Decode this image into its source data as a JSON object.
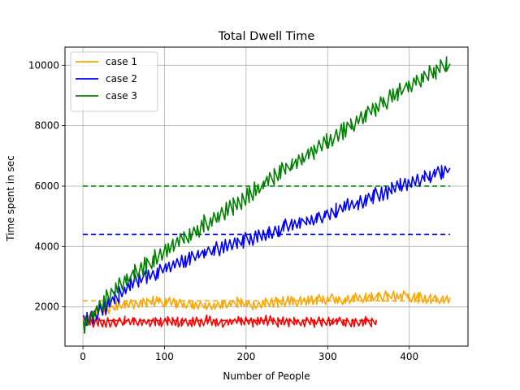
{
  "chart_data": {
    "type": "line",
    "title": "Total Dwell Time",
    "xlabel": "Number of People",
    "ylabel": "Time spent in sec",
    "xlim": [
      -22,
      472
    ],
    "ylim": [
      700,
      10600
    ],
    "xticks": [
      0,
      100,
      200,
      300,
      400
    ],
    "yticks": [
      2000,
      4000,
      6000,
      8000,
      10000
    ],
    "grid": true,
    "legend_position": "top-left",
    "series": [
      {
        "name": "case 1",
        "color": "#FFA500",
        "style": "solid",
        "x": [
          0,
          10,
          20,
          30,
          40,
          50,
          60,
          70,
          80,
          90,
          100,
          110,
          120,
          130,
          140,
          150,
          160,
          170,
          180,
          190,
          200,
          210,
          220,
          230,
          240,
          250,
          260,
          270,
          280,
          290,
          300,
          310,
          320,
          330,
          340,
          350,
          360,
          370,
          380,
          390,
          400,
          410,
          420,
          430,
          440,
          450
        ],
        "y": [
          1500,
          1700,
          1850,
          1900,
          2000,
          2050,
          2100,
          2150,
          2150,
          2200,
          2150,
          2150,
          2100,
          2050,
          2000,
          2050,
          2000,
          2050,
          2100,
          2150,
          2100,
          2050,
          2100,
          2150,
          2150,
          2200,
          2150,
          2200,
          2200,
          2250,
          2250,
          2250,
          2200,
          2250,
          2300,
          2300,
          2300,
          2350,
          2350,
          2350,
          2350,
          2300,
          2300,
          2250,
          2250,
          2300
        ],
        "jitter": 180
      },
      {
        "name": "case 2",
        "color": "#0000FF",
        "style": "solid",
        "x": [
          0,
          10,
          20,
          30,
          40,
          50,
          60,
          70,
          80,
          90,
          100,
          110,
          120,
          130,
          140,
          150,
          160,
          170,
          180,
          190,
          200,
          210,
          220,
          230,
          240,
          250,
          260,
          270,
          280,
          290,
          300,
          310,
          320,
          330,
          340,
          350,
          360,
          370,
          380,
          390,
          400,
          410,
          420,
          430,
          440,
          450
        ],
        "y": [
          1500,
          1650,
          1850,
          2050,
          2300,
          2550,
          2750,
          2900,
          3050,
          3150,
          3300,
          3400,
          3500,
          3600,
          3700,
          3800,
          3900,
          3950,
          4050,
          4150,
          4200,
          4300,
          4400,
          4450,
          4550,
          4650,
          4700,
          4800,
          4900,
          5000,
          5100,
          5200,
          5300,
          5350,
          5450,
          5600,
          5700,
          5800,
          5900,
          6000,
          6100,
          6200,
          6300,
          6400,
          6500,
          6600
        ],
        "jitter": 260
      },
      {
        "name": "case 3",
        "color": "#008000",
        "style": "solid",
        "x": [
          0,
          10,
          20,
          30,
          40,
          50,
          60,
          70,
          80,
          90,
          100,
          110,
          120,
          130,
          140,
          150,
          160,
          170,
          180,
          190,
          200,
          210,
          220,
          230,
          240,
          250,
          260,
          270,
          280,
          290,
          300,
          310,
          320,
          330,
          340,
          350,
          360,
          370,
          380,
          390,
          400,
          410,
          420,
          430,
          440,
          450
        ],
        "y": [
          1300,
          1700,
          2000,
          2300,
          2600,
          2850,
          3050,
          3250,
          3450,
          3650,
          3800,
          4000,
          4200,
          4400,
          4550,
          4750,
          4900,
          5100,
          5250,
          5450,
          5650,
          5850,
          6000,
          6200,
          6400,
          6600,
          6750,
          6950,
          7100,
          7300,
          7450,
          7650,
          7850,
          8050,
          8250,
          8450,
          8600,
          8800,
          9000,
          9150,
          9350,
          9500,
          9650,
          9800,
          9950,
          10050
        ],
        "jitter": 300
      },
      {
        "color": "#FF0000",
        "style": "solid",
        "x": [
          0,
          10,
          20,
          30,
          40,
          50,
          60,
          70,
          80,
          90,
          100,
          110,
          120,
          130,
          140,
          150,
          160,
          170,
          180,
          190,
          200,
          210,
          220,
          230,
          240,
          250,
          260,
          270,
          280,
          290,
          300,
          310,
          320,
          330,
          340,
          350,
          360
        ],
        "y": [
          1550,
          1500,
          1450,
          1500,
          1500,
          1550,
          1500,
          1500,
          1500,
          1550,
          1500,
          1550,
          1500,
          1450,
          1500,
          1550,
          1500,
          1500,
          1500,
          1550,
          1500,
          1500,
          1550,
          1550,
          1500,
          1500,
          1500,
          1500,
          1500,
          1500,
          1500,
          1500,
          1500,
          1500,
          1500,
          1500,
          1550
        ],
        "jitter": 180
      }
    ],
    "reference_lines": [
      {
        "y": 2200,
        "x": [
          0,
          450
        ],
        "color": "#FFA500",
        "style": "dashed"
      },
      {
        "y": 4400,
        "x": [
          0,
          450
        ],
        "color": "#0000FF",
        "style": "dashed"
      },
      {
        "y": 6000,
        "x": [
          0,
          450
        ],
        "color": "#008000",
        "style": "dashed"
      },
      {
        "y": 1550,
        "x": [
          0,
          360
        ],
        "color": "#FF0000",
        "style": "dashed"
      }
    ]
  }
}
